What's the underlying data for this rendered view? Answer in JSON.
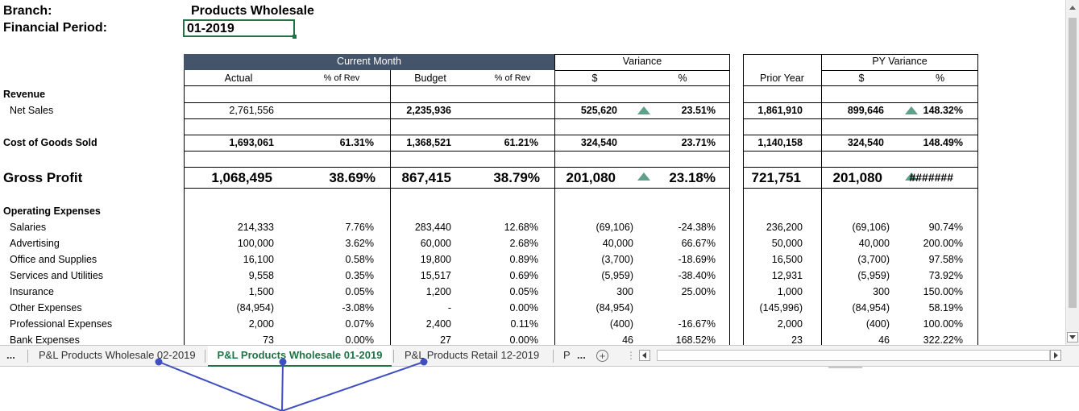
{
  "header": {
    "branch_label": "Branch:",
    "branch_value": "Products Wholesale",
    "period_label": "Financial Period:",
    "period_value": "01-2019"
  },
  "columns": {
    "current_month": "Current Month",
    "variance": "Variance",
    "py_variance": "PY Variance",
    "actual": "Actual",
    "pct_rev_1": "% of Rev",
    "budget": "Budget",
    "pct_rev_2": "% of Rev",
    "var_dollar": "$",
    "var_pct": "%",
    "prior_year": "Prior Year",
    "py_dollar": "$",
    "py_pct": "%"
  },
  "rows": {
    "revenue_label": "Revenue",
    "net_sales": {
      "label": "Net Sales",
      "actual": "2,761,556",
      "budget": "2,235,936",
      "var": "525,620",
      "var_pct": "23.51%",
      "prior": "1,861,910",
      "py": "899,646",
      "py_pct": "148.32%"
    },
    "cogs": {
      "label": "Cost of Goods Sold",
      "actual": "1,693,061",
      "pct1": "61.31%",
      "budget": "1,368,521",
      "pct2": "61.21%",
      "var": "324,540",
      "var_pct": "23.71%",
      "prior": "1,140,158",
      "py": "324,540",
      "py_pct": "148.49%"
    },
    "gross": {
      "label": "Gross Profit",
      "actual": "1,068,495",
      "pct1": "38.69%",
      "budget": "867,415",
      "pct2": "38.79%",
      "var": "201,080",
      "var_pct": "23.18%",
      "prior": "721,751",
      "py": "201,080",
      "py_pct": "#######"
    },
    "opex_label": "Operating Expenses",
    "opex": [
      {
        "label": "Salaries",
        "actual": "214,333",
        "pct1": "7.76%",
        "budget": "283,440",
        "pct2": "12.68%",
        "var": "(69,106)",
        "var_pct": "-24.38%",
        "prior": "236,200",
        "py": "(69,106)",
        "py_pct": "90.74%"
      },
      {
        "label": "Advertising",
        "actual": "100,000",
        "pct1": "3.62%",
        "budget": "60,000",
        "pct2": "2.68%",
        "var": "40,000",
        "var_pct": "66.67%",
        "prior": "50,000",
        "py": "40,000",
        "py_pct": "200.00%"
      },
      {
        "label": "Office and Supplies",
        "actual": "16,100",
        "pct1": "0.58%",
        "budget": "19,800",
        "pct2": "0.89%",
        "var": "(3,700)",
        "var_pct": "-18.69%",
        "prior": "16,500",
        "py": "(3,700)",
        "py_pct": "97.58%"
      },
      {
        "label": "Services and Utilities",
        "actual": "9,558",
        "pct1": "0.35%",
        "budget": "15,517",
        "pct2": "0.69%",
        "var": "(5,959)",
        "var_pct": "-38.40%",
        "prior": "12,931",
        "py": "(5,959)",
        "py_pct": "73.92%"
      },
      {
        "label": "Insurance",
        "actual": "1,500",
        "pct1": "0.05%",
        "budget": "1,200",
        "pct2": "0.05%",
        "var": "300",
        "var_pct": "25.00%",
        "prior": "1,000",
        "py": "300",
        "py_pct": "150.00%"
      },
      {
        "label": "Other Expenses",
        "actual": "(84,954)",
        "pct1": "-3.08%",
        "budget": "-",
        "pct2": "0.00%",
        "var": "(84,954)",
        "var_pct": "",
        "prior": "(145,996)",
        "py": "(84,954)",
        "py_pct": "58.19%"
      },
      {
        "label": "Professional Expenses",
        "actual": "2,000",
        "pct1": "0.07%",
        "budget": "2,400",
        "pct2": "0.11%",
        "var": "(400)",
        "var_pct": "-16.67%",
        "prior": "2,000",
        "py": "(400)",
        "py_pct": "100.00%"
      },
      {
        "label": "Bank Expenses",
        "actual": "73",
        "pct1": "0.00%",
        "budget": "27",
        "pct2": "0.00%",
        "var": "46",
        "var_pct": "168.52%",
        "prior": "23",
        "py": "46",
        "py_pct": "322.22%"
      }
    ]
  },
  "tabs": {
    "more_left": "...",
    "tab1": "P&L Products Wholesale 02-2019",
    "tab2": "P&L Products Wholesale 01-2019",
    "tab3": "P&L Products Retail 12-2019",
    "tab4": "P",
    "more_right": "..."
  },
  "colors": {
    "header_fill": "#44546a",
    "accent_green": "#217346",
    "triangle": "#5fa08a",
    "callout": "#3f4fbf"
  }
}
